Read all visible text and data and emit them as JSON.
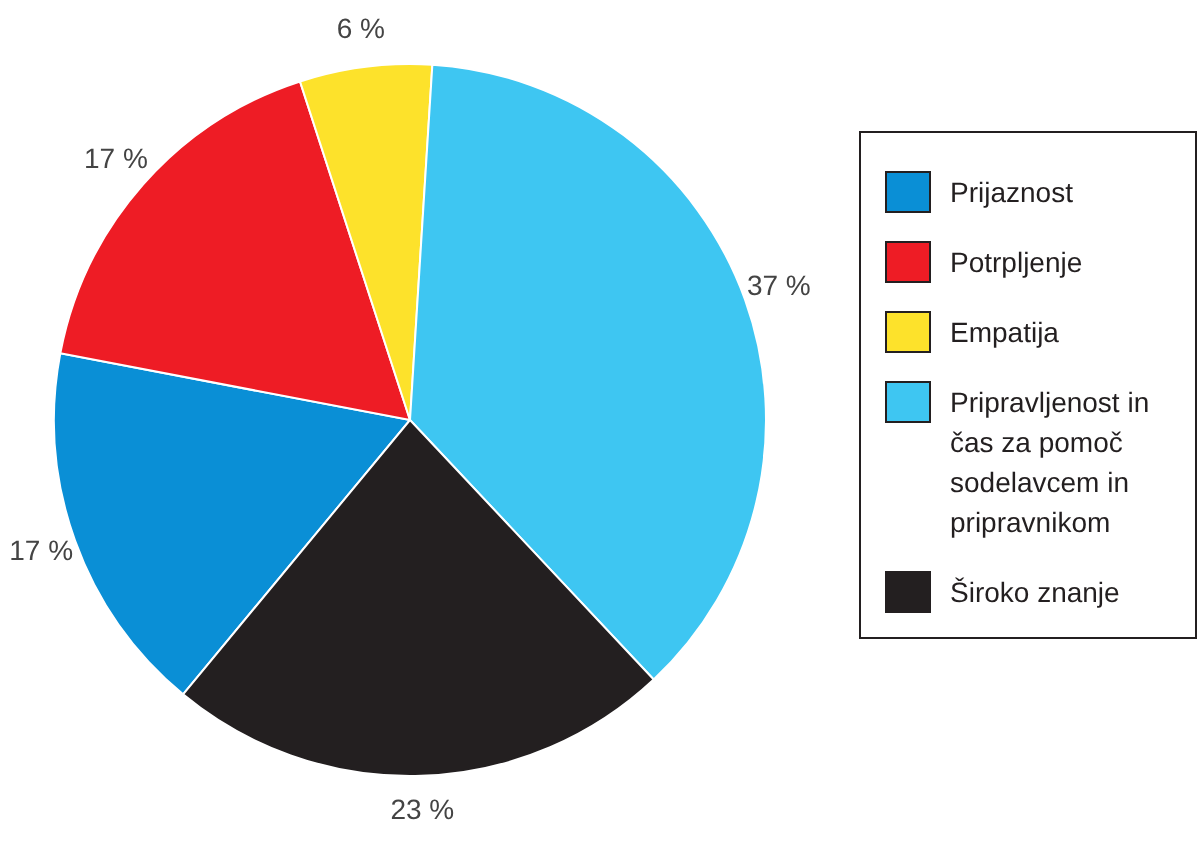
{
  "chart_data": {
    "type": "pie",
    "categories": [
      "Prijaznost",
      "Potrpljenje",
      "Empatija",
      "Pripravljenost in čas za pomoč sodelavcem in pripravnikom",
      "Široko znanje"
    ],
    "values": [
      17,
      17,
      6,
      37,
      23
    ],
    "colors": [
      "#0a8fd6",
      "#ee1c25",
      "#fde22b",
      "#3ec6f2",
      "#231f20"
    ],
    "value_labels": [
      "17 %",
      "17 %",
      "6 %",
      "37 %",
      "23 %"
    ],
    "legend": "right"
  }
}
